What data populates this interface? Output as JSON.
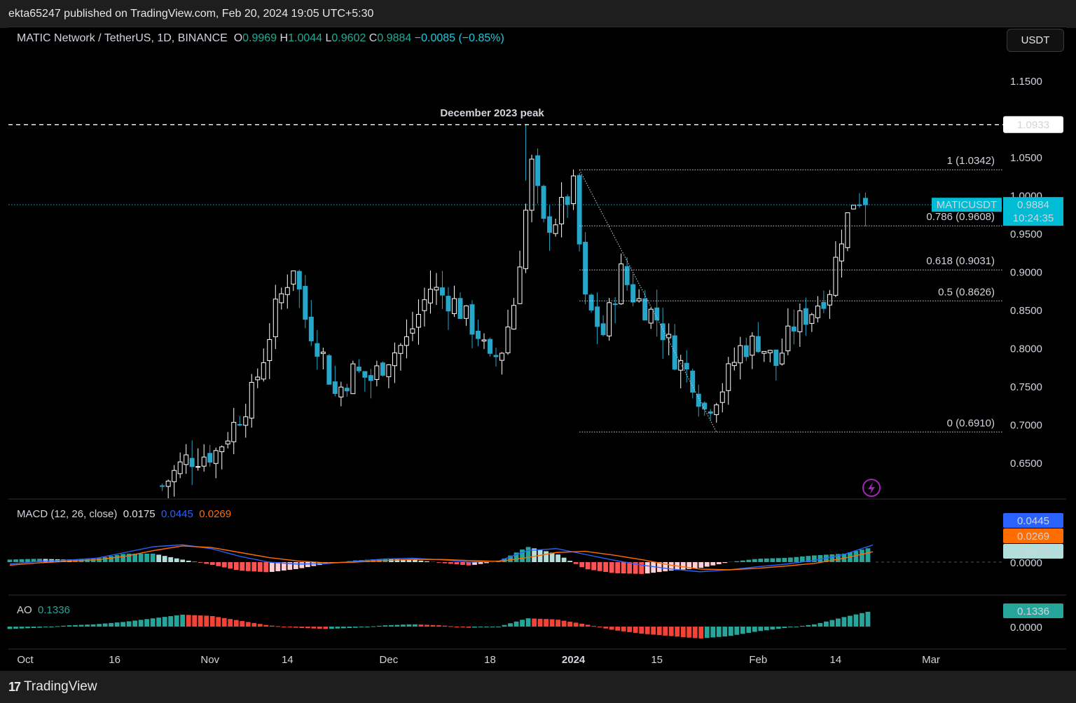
{
  "header": {
    "publisher_text": "ekta65247 published on TradingView.com, Feb 20, 2024 19:05 UTC+5:30"
  },
  "symbol": {
    "title": "MATIC Network / TetherUS, 1D, BINANCE",
    "o_label": "O",
    "o_value": "0.9969",
    "h_label": "H",
    "h_value": "1.0044",
    "l_label": "L",
    "l_value": "0.9602",
    "c_label": "C",
    "c_value": "0.9884",
    "change": "−0.0085 (−0.85%)"
  },
  "currency_button": "USDT",
  "price_axis": {
    "ticks": [
      "1.1500",
      "1.0500",
      "1.0000",
      "0.9500",
      "0.9000",
      "0.8500",
      "0.8000",
      "0.7500",
      "0.7000",
      "0.6500"
    ],
    "peak_label": "1.0933",
    "last_symbol": "MATICUSDT",
    "last_price": "0.9884",
    "countdown": "10:24:35"
  },
  "annotations": {
    "peak_text": "December 2023 peak",
    "fib_levels": [
      {
        "label": "1 (1.0342)",
        "value": 1.0342
      },
      {
        "label": "0.786 (0.9608)",
        "value": 0.9608
      },
      {
        "label": "0.618 (0.9031)",
        "value": 0.9031
      },
      {
        "label": "0.5 (0.8626)",
        "value": 0.8626
      },
      {
        "label": "0 (0.6910)",
        "value": 0.691
      }
    ]
  },
  "macd": {
    "title": "MACD (12, 26, close)",
    "hist_value": "0.0175",
    "macd_value": "0.0445",
    "signal_value": "0.0269",
    "axis_zero": "0.0000"
  },
  "ao": {
    "title": "AO",
    "value": "0.1336",
    "axis_zero": "0.0000"
  },
  "time_axis": [
    "Oct",
    "16",
    "Nov",
    "14",
    "Dec",
    "18",
    "2024",
    "15",
    "Feb",
    "14",
    "Mar"
  ],
  "footer": {
    "brand": "TradingView"
  },
  "colors": {
    "up": "#ffffff",
    "down": "#26a6c9",
    "hist_up": "#26a69a",
    "hist_down": "#f44336",
    "macd": "#2962ff",
    "signal": "#ff6d00"
  },
  "chart_data": {
    "type": "candlestick",
    "interval": "1D",
    "visible_price_range": [
      0.61,
      1.185
    ],
    "ohlc_recent": {
      "open": 0.9969,
      "high": 1.0044,
      "low": 0.9602,
      "close": 0.9884
    },
    "peak": 1.0933,
    "close_path": [
      [
        "2023-10-24",
        0.62
      ],
      [
        "2023-10-28",
        0.655
      ],
      [
        "2023-11-02",
        0.665
      ],
      [
        "2023-11-05",
        0.7
      ],
      [
        "2023-11-08",
        0.74
      ],
      [
        "2023-11-10",
        0.79
      ],
      [
        "2023-11-12",
        0.85
      ],
      [
        "2023-11-15",
        0.91
      ],
      [
        "2023-11-17",
        0.84
      ],
      [
        "2023-11-20",
        0.79
      ],
      [
        "2023-11-22",
        0.74
      ],
      [
        "2023-11-25",
        0.77
      ],
      [
        "2023-11-28",
        0.76
      ],
      [
        "2023-12-01",
        0.79
      ],
      [
        "2023-12-04",
        0.81
      ],
      [
        "2023-12-08",
        0.88
      ],
      [
        "2023-12-12",
        0.86
      ],
      [
        "2023-12-16",
        0.82
      ],
      [
        "2023-12-18",
        0.78
      ],
      [
        "2023-12-20",
        0.8
      ],
      [
        "2023-12-22",
        0.86
      ],
      [
        "2023-12-24",
        0.98
      ],
      [
        "2023-12-25",
        1.04
      ],
      [
        "2023-12-27",
        0.96
      ],
      [
        "2023-12-29",
        0.97
      ],
      [
        "2024-01-01",
        1.01
      ],
      [
        "2024-01-03",
        0.86
      ],
      [
        "2024-01-06",
        0.82
      ],
      [
        "2024-01-09",
        0.9
      ],
      [
        "2024-01-11",
        0.87
      ],
      [
        "2024-01-15",
        0.84
      ],
      [
        "2024-01-18",
        0.79
      ],
      [
        "2024-01-21",
        0.76
      ],
      [
        "2024-01-23",
        0.72
      ],
      [
        "2024-01-26",
        0.75
      ],
      [
        "2024-01-29",
        0.8
      ],
      [
        "2024-02-01",
        0.81
      ],
      [
        "2024-02-04",
        0.78
      ],
      [
        "2024-02-07",
        0.83
      ],
      [
        "2024-02-10",
        0.85
      ],
      [
        "2024-02-13",
        0.88
      ],
      [
        "2024-02-15",
        0.95
      ],
      [
        "2024-02-17",
        0.995
      ],
      [
        "2024-02-18",
        0.9969
      ],
      [
        "2024-02-19",
        0.9884
      ]
    ],
    "macd_line_path": [
      -0.005,
      0.002,
      0.005,
      0.01,
      0.025,
      0.04,
      0.045,
      0.035,
      0.015,
      0.0,
      -0.005,
      -0.004,
      0.002,
      0.008,
      0.01,
      0.006,
      0.0,
      0.003,
      0.03,
      0.035,
      0.02,
      0.005,
      -0.008,
      -0.018,
      -0.025,
      -0.02,
      -0.012,
      -0.005,
      0.005,
      0.02,
      0.0445
    ],
    "signal_line_path": [
      -0.008,
      -0.002,
      0.002,
      0.006,
      0.015,
      0.03,
      0.042,
      0.038,
      0.025,
      0.012,
      0.003,
      -0.002,
      0.0,
      0.004,
      0.007,
      0.007,
      0.004,
      0.002,
      0.012,
      0.025,
      0.028,
      0.018,
      0.006,
      -0.008,
      -0.018,
      -0.02,
      -0.016,
      -0.01,
      -0.003,
      0.01,
      0.0269
    ],
    "ao_path": [
      -0.02,
      -0.01,
      0.01,
      0.02,
      0.04,
      0.07,
      0.1,
      0.09,
      0.05,
      0.01,
      -0.01,
      -0.02,
      -0.01,
      0.01,
      0.02,
      0.01,
      -0.01,
      0.0,
      0.07,
      0.06,
      0.02,
      -0.03,
      -0.06,
      -0.08,
      -0.1,
      -0.08,
      -0.04,
      -0.01,
      0.02,
      0.08,
      0.1336
    ]
  }
}
